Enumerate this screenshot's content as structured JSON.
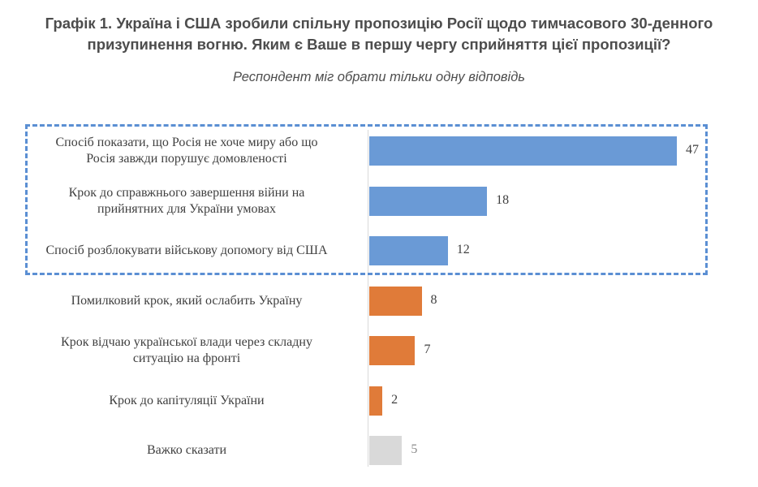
{
  "title": {
    "line1": "Графік 1. Україна і США зробили спільну пропозицію Росії щодо тимчасового 30-денного",
    "line2": "призупинення вогню. Яким є Ваше в першу чергу сприйняття цієї пропозиції?"
  },
  "subtitle": "Респондент міг обрати тільки одну відповідь",
  "colors": {
    "blue": "#6a9ad6",
    "orange": "#e07b39",
    "gray": "#d9d9d9",
    "highlight": "#5b8fd3"
  },
  "chart_data": {
    "type": "bar",
    "orientation": "horizontal",
    "categories": [
      [
        "Спосіб показати, що Росія не хоче миру або що",
        "Росія завжди порушує домовленості"
      ],
      [
        "Крок до справжнього завершення війни на",
        "прийнятних для України умовах"
      ],
      [
        "Спосіб розблокувати військову допомогу від США"
      ],
      [
        "Помилковий крок, який ослабить Україну"
      ],
      [
        "Крок відчаю української влади через складну",
        "ситуацію на фронті"
      ],
      [
        "Крок до капітуляції України"
      ],
      [
        "Важко сказати"
      ]
    ],
    "values": [
      47,
      18,
      12,
      8,
      7,
      2,
      5
    ],
    "bar_colors": [
      "blue",
      "blue",
      "blue",
      "orange",
      "orange",
      "orange",
      "gray"
    ],
    "highlighted_group": [
      0,
      1,
      2
    ],
    "xlim": [
      0,
      47
    ]
  }
}
